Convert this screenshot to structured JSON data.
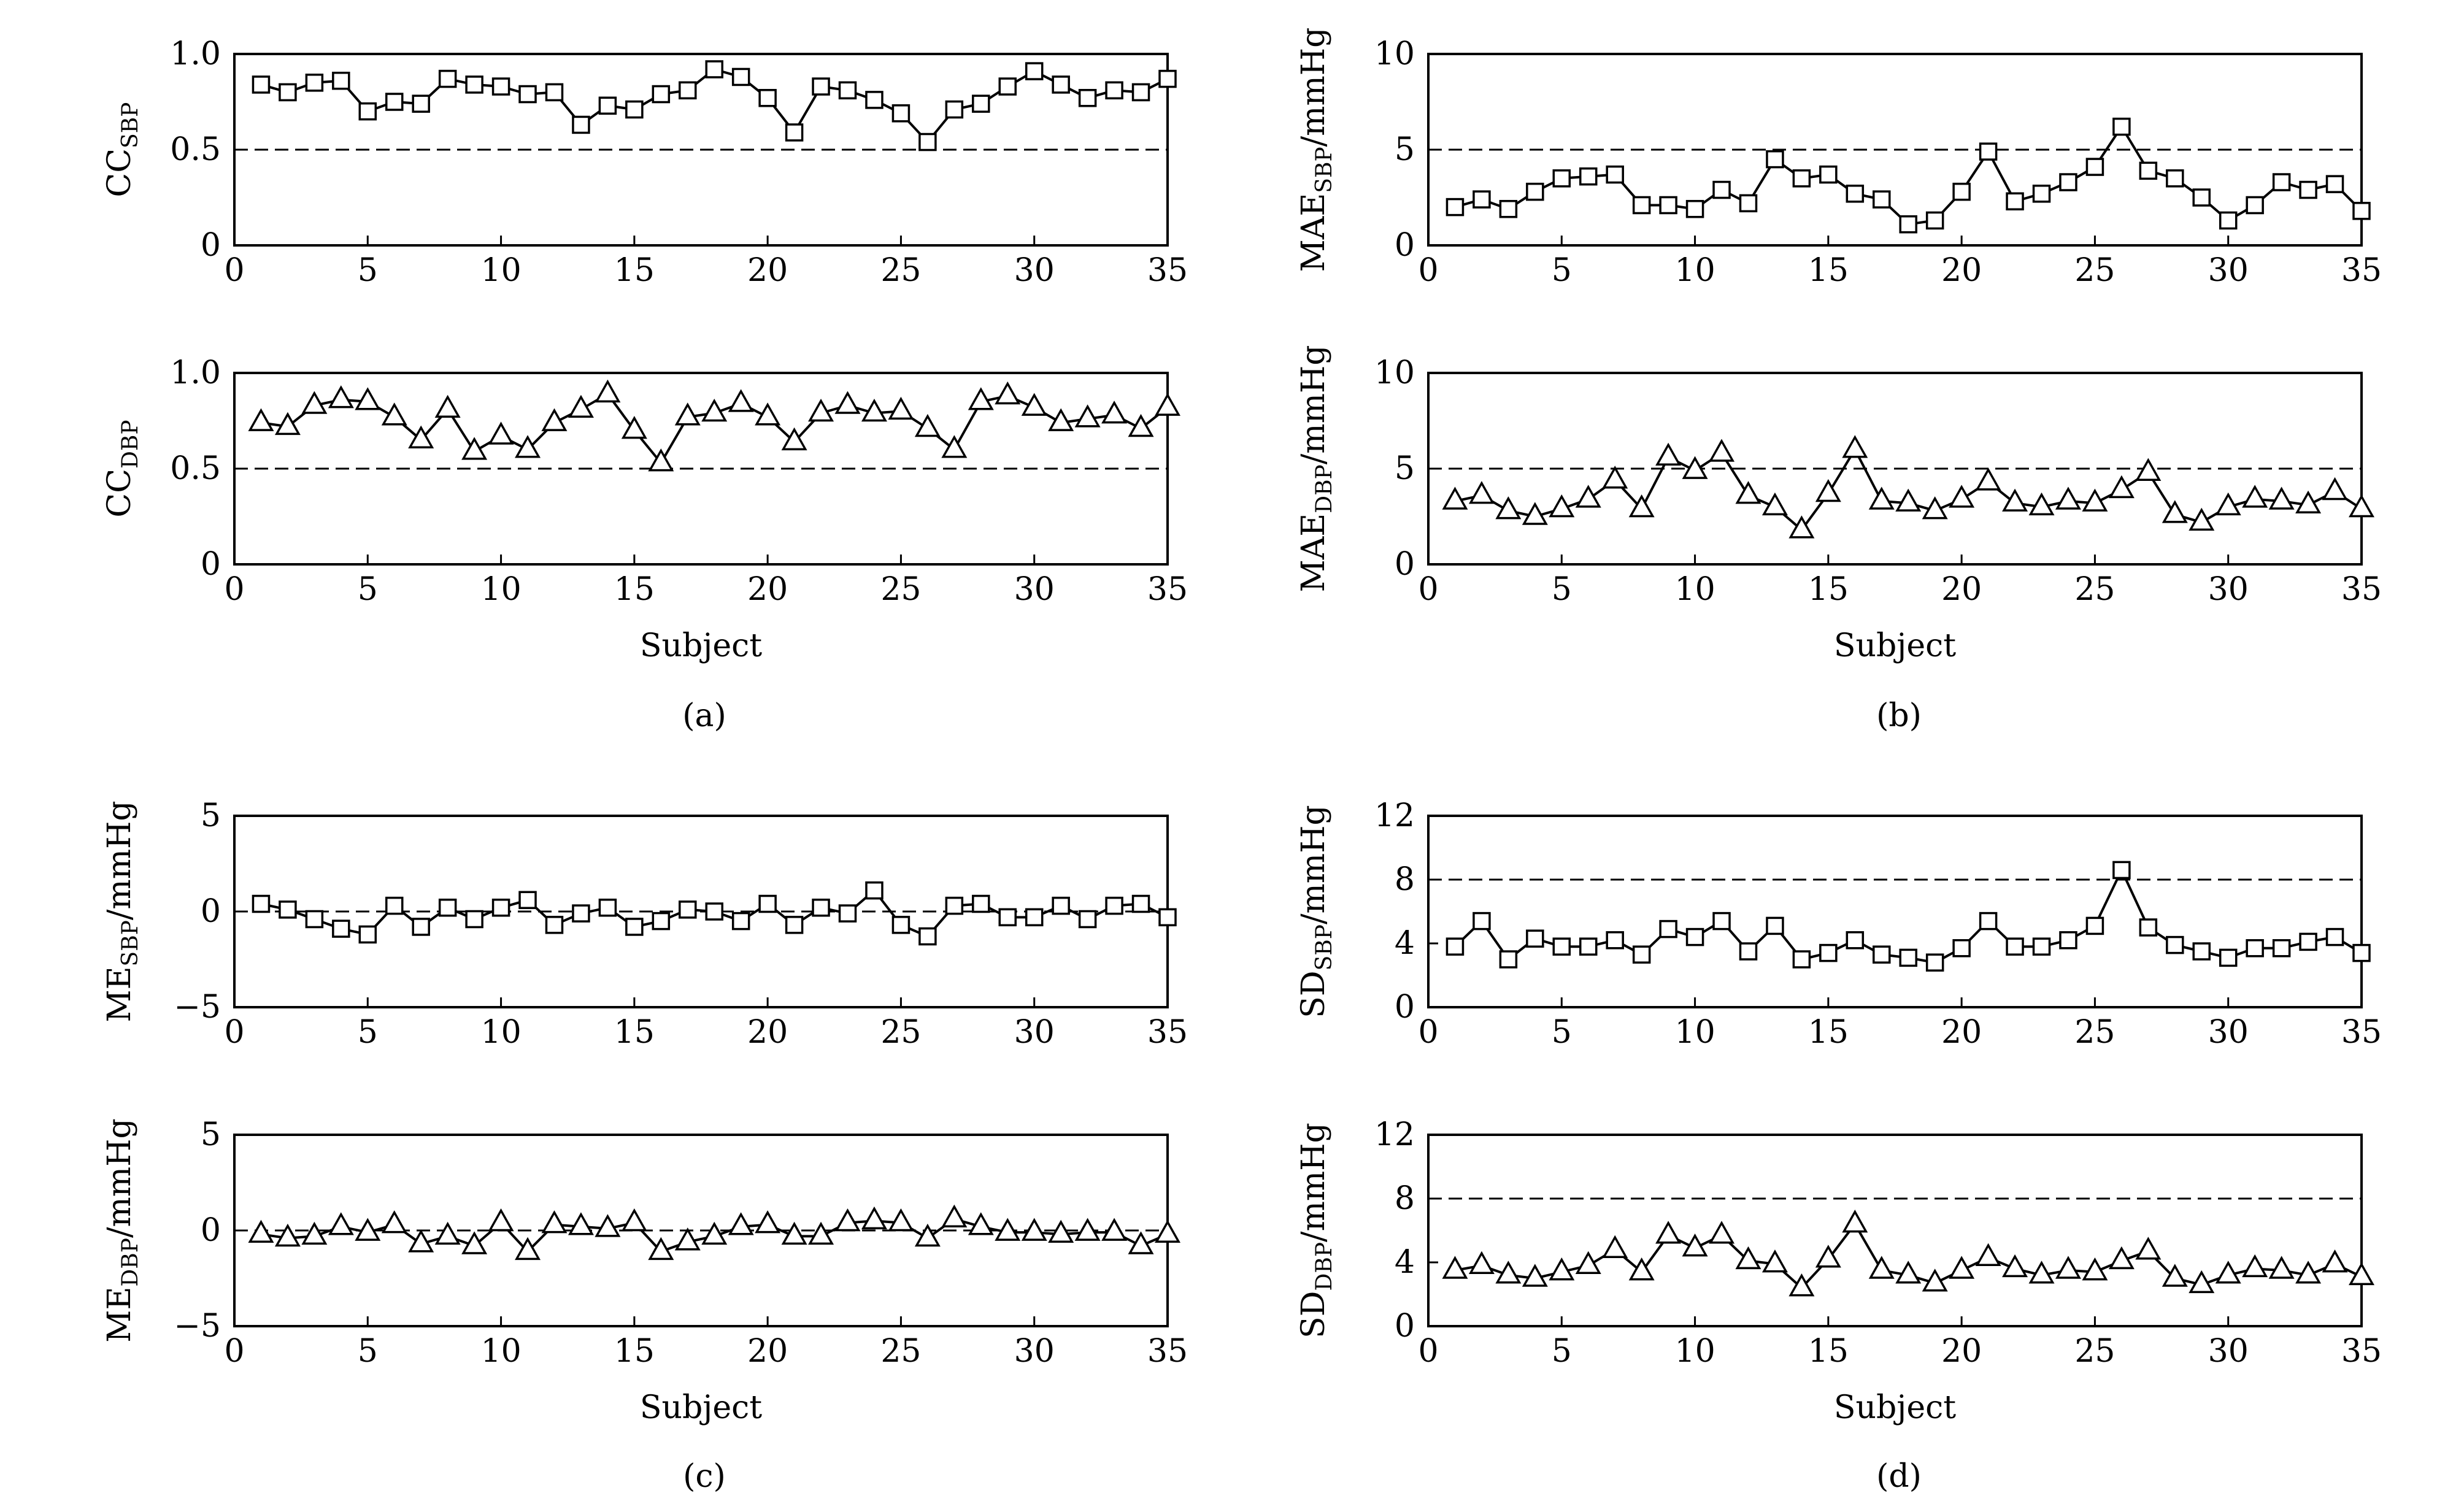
{
  "figure": {
    "panel_labels": [
      "(a)",
      "(b)",
      "(c)",
      "(d)"
    ]
  },
  "chart_data": [
    {
      "type": "line",
      "panel": "(a)",
      "ylabel": "CC",
      "ylabel_sub": "SBP",
      "xlabel": "",
      "xlim": [
        0,
        35
      ],
      "ylim": [
        0,
        1.0
      ],
      "xticks": [
        0,
        5,
        10,
        15,
        20,
        25,
        30,
        35
      ],
      "yticks": [
        0,
        0.5,
        1.0
      ],
      "ytick_labels": [
        "0",
        "0.5",
        "1.0"
      ],
      "threshold": 0.5,
      "marker": "square",
      "x": [
        1,
        2,
        3,
        4,
        5,
        6,
        7,
        8,
        9,
        10,
        11,
        12,
        13,
        14,
        15,
        16,
        17,
        18,
        19,
        20,
        21,
        22,
        23,
        24,
        25,
        26,
        27,
        28,
        29,
        30,
        31,
        32,
        33,
        34,
        35
      ],
      "values": [
        0.84,
        0.8,
        0.85,
        0.86,
        0.7,
        0.75,
        0.74,
        0.87,
        0.84,
        0.83,
        0.79,
        0.8,
        0.63,
        0.73,
        0.71,
        0.79,
        0.81,
        0.92,
        0.88,
        0.77,
        0.59,
        0.83,
        0.81,
        0.76,
        0.69,
        0.54,
        0.71,
        0.74,
        0.83,
        0.91,
        0.84,
        0.77,
        0.81,
        0.8,
        0.87
      ]
    },
    {
      "type": "line",
      "panel": "(a)",
      "ylabel": "CC",
      "ylabel_sub": "DBP",
      "xlabel": "Subject",
      "xlim": [
        0,
        35
      ],
      "ylim": [
        0,
        1.0
      ],
      "xticks": [
        0,
        5,
        10,
        15,
        20,
        25,
        30,
        35
      ],
      "yticks": [
        0,
        0.5,
        1.0
      ],
      "ytick_labels": [
        "0",
        "0.5",
        "1.0"
      ],
      "threshold": 0.5,
      "marker": "triangle",
      "x": [
        1,
        2,
        3,
        4,
        5,
        6,
        7,
        8,
        9,
        10,
        11,
        12,
        13,
        14,
        15,
        16,
        17,
        18,
        19,
        20,
        21,
        22,
        23,
        24,
        25,
        26,
        27,
        28,
        29,
        30,
        31,
        32,
        33,
        34,
        35
      ],
      "values": [
        0.74,
        0.72,
        0.83,
        0.86,
        0.85,
        0.77,
        0.65,
        0.81,
        0.59,
        0.67,
        0.6,
        0.74,
        0.81,
        0.89,
        0.7,
        0.53,
        0.77,
        0.79,
        0.84,
        0.77,
        0.64,
        0.79,
        0.83,
        0.79,
        0.8,
        0.71,
        0.6,
        0.85,
        0.88,
        0.82,
        0.74,
        0.76,
        0.78,
        0.71,
        0.82
      ]
    },
    {
      "type": "line",
      "panel": "(b)",
      "ylabel": "MAE",
      "ylabel_sub": "SBP",
      "ylabel_unit": "/mmHg",
      "xlabel": "",
      "xlim": [
        0,
        35
      ],
      "ylim": [
        0,
        10
      ],
      "xticks": [
        0,
        5,
        10,
        15,
        20,
        25,
        30,
        35
      ],
      "yticks": [
        0,
        5,
        10
      ],
      "ytick_labels": [
        "0",
        "5",
        "10"
      ],
      "threshold": 5,
      "marker": "square",
      "x": [
        1,
        2,
        3,
        4,
        5,
        6,
        7,
        8,
        9,
        10,
        11,
        12,
        13,
        14,
        15,
        16,
        17,
        18,
        19,
        20,
        21,
        22,
        23,
        24,
        25,
        26,
        27,
        28,
        29,
        30,
        31,
        32,
        33,
        34,
        35
      ],
      "values": [
        2.0,
        2.4,
        1.9,
        2.8,
        3.5,
        3.6,
        3.7,
        2.1,
        2.1,
        1.9,
        2.9,
        2.2,
        4.5,
        3.5,
        3.7,
        2.7,
        2.4,
        1.1,
        1.3,
        2.8,
        4.9,
        2.3,
        2.7,
        3.3,
        4.1,
        6.2,
        3.9,
        3.5,
        2.5,
        1.3,
        2.1,
        3.3,
        2.9,
        3.2,
        1.8
      ]
    },
    {
      "type": "line",
      "panel": "(b)",
      "ylabel": "MAE",
      "ylabel_sub": "DBP",
      "ylabel_unit": "/mmHg",
      "xlabel": "Subject",
      "xlim": [
        0,
        35
      ],
      "ylim": [
        0,
        10
      ],
      "xticks": [
        0,
        5,
        10,
        15,
        20,
        25,
        30,
        35
      ],
      "yticks": [
        0,
        5,
        10
      ],
      "ytick_labels": [
        "0",
        "5",
        "10"
      ],
      "threshold": 5,
      "marker": "triangle",
      "x": [
        1,
        2,
        3,
        4,
        5,
        6,
        7,
        8,
        9,
        10,
        11,
        12,
        13,
        14,
        15,
        16,
        17,
        18,
        19,
        20,
        21,
        22,
        23,
        24,
        25,
        26,
        27,
        28,
        29,
        30,
        31,
        32,
        33,
        34,
        35
      ],
      "values": [
        3.3,
        3.6,
        2.8,
        2.5,
        2.9,
        3.4,
        4.4,
        2.9,
        5.6,
        4.9,
        5.8,
        3.6,
        3.0,
        1.8,
        3.7,
        6.0,
        3.3,
        3.2,
        2.8,
        3.4,
        4.3,
        3.2,
        3.0,
        3.3,
        3.2,
        3.9,
        4.8,
        2.6,
        2.2,
        3.0,
        3.4,
        3.3,
        3.1,
        3.8,
        2.9
      ]
    },
    {
      "type": "line",
      "panel": "(c)",
      "ylabel": "ME",
      "ylabel_sub": "SBP",
      "ylabel_unit": "/mmHg",
      "xlabel": "",
      "xlim": [
        0,
        35
      ],
      "ylim": [
        -5,
        5
      ],
      "xticks": [
        0,
        5,
        10,
        15,
        20,
        25,
        30,
        35
      ],
      "yticks": [
        -5,
        0,
        5
      ],
      "ytick_labels": [
        "−5",
        "0",
        "5"
      ],
      "threshold": 0,
      "marker": "square",
      "x": [
        1,
        2,
        3,
        4,
        5,
        6,
        7,
        8,
        9,
        10,
        11,
        12,
        13,
        14,
        15,
        16,
        17,
        18,
        19,
        20,
        21,
        22,
        23,
        24,
        25,
        26,
        27,
        28,
        29,
        30,
        31,
        32,
        33,
        34,
        35
      ],
      "values": [
        0.4,
        0.1,
        -0.4,
        -0.9,
        -1.2,
        0.3,
        -0.8,
        0.2,
        -0.4,
        0.2,
        0.6,
        -0.7,
        -0.1,
        0.2,
        -0.8,
        -0.5,
        0.1,
        0.0,
        -0.5,
        0.4,
        -0.7,
        0.2,
        -0.1,
        1.1,
        -0.7,
        -1.3,
        0.3,
        0.4,
        -0.3,
        -0.3,
        0.3,
        -0.4,
        0.3,
        0.4,
        -0.3
      ]
    },
    {
      "type": "line",
      "panel": "(c)",
      "ylabel": "ME",
      "ylabel_sub": "DBP",
      "ylabel_unit": "/mmHg",
      "xlabel": "Subject",
      "xlim": [
        0,
        35
      ],
      "ylim": [
        -5,
        5
      ],
      "xticks": [
        0,
        5,
        10,
        15,
        20,
        25,
        30,
        35
      ],
      "yticks": [
        -5,
        0,
        5
      ],
      "ytick_labels": [
        "−5",
        "0",
        "5"
      ],
      "threshold": 0,
      "marker": "triangle",
      "x": [
        1,
        2,
        3,
        4,
        5,
        6,
        7,
        8,
        9,
        10,
        11,
        12,
        13,
        14,
        15,
        16,
        17,
        18,
        19,
        20,
        21,
        22,
        23,
        24,
        25,
        26,
        27,
        28,
        29,
        30,
        31,
        32,
        33,
        34,
        35
      ],
      "values": [
        -0.2,
        -0.4,
        -0.3,
        0.2,
        -0.1,
        0.3,
        -0.7,
        -0.3,
        -0.8,
        0.4,
        -1.1,
        0.3,
        0.2,
        0.1,
        0.4,
        -1.1,
        -0.6,
        -0.3,
        0.2,
        0.3,
        -0.3,
        -0.3,
        0.4,
        0.5,
        0.4,
        -0.4,
        0.6,
        0.2,
        -0.1,
        -0.1,
        -0.2,
        -0.1,
        -0.1,
        -0.8,
        -0.2
      ]
    },
    {
      "type": "line",
      "panel": "(d)",
      "ylabel": "SD",
      "ylabel_sub": "SBP",
      "ylabel_unit": "/mmHg",
      "xlabel": "",
      "xlim": [
        0,
        35
      ],
      "ylim": [
        0,
        12
      ],
      "xticks": [
        0,
        5,
        10,
        15,
        20,
        25,
        30,
        35
      ],
      "yticks": [
        0,
        4,
        8,
        12
      ],
      "ytick_labels": [
        "0",
        "4",
        "8",
        "12"
      ],
      "threshold": 8,
      "marker": "square",
      "x": [
        1,
        2,
        3,
        4,
        5,
        6,
        7,
        8,
        9,
        10,
        11,
        12,
        13,
        14,
        15,
        16,
        17,
        18,
        19,
        20,
        21,
        22,
        23,
        24,
        25,
        26,
        27,
        28,
        29,
        30,
        31,
        32,
        33,
        34,
        35
      ],
      "values": [
        3.8,
        5.4,
        3.0,
        4.3,
        3.8,
        3.8,
        4.2,
        3.3,
        4.9,
        4.4,
        5.4,
        3.5,
        5.1,
        3.0,
        3.4,
        4.2,
        3.3,
        3.1,
        2.8,
        3.7,
        5.4,
        3.8,
        3.8,
        4.2,
        5.1,
        8.6,
        5.0,
        3.9,
        3.5,
        3.1,
        3.7,
        3.7,
        4.1,
        4.4,
        3.4
      ]
    },
    {
      "type": "line",
      "panel": "(d)",
      "ylabel": "SD",
      "ylabel_sub": "DBP",
      "ylabel_unit": "/mmHg",
      "xlabel": "Subject",
      "xlim": [
        0,
        35
      ],
      "ylim": [
        0,
        12
      ],
      "xticks": [
        0,
        5,
        10,
        15,
        20,
        25,
        30,
        35
      ],
      "yticks": [
        0,
        4,
        8,
        12
      ],
      "ytick_labels": [
        "0",
        "4",
        "8",
        "12"
      ],
      "threshold": 8,
      "marker": "triangle",
      "x": [
        1,
        2,
        3,
        4,
        5,
        6,
        7,
        8,
        9,
        10,
        11,
        12,
        13,
        14,
        15,
        16,
        17,
        18,
        19,
        20,
        21,
        22,
        23,
        24,
        25,
        26,
        27,
        28,
        29,
        30,
        31,
        32,
        33,
        34,
        35
      ],
      "values": [
        3.5,
        3.8,
        3.2,
        3.0,
        3.4,
        3.8,
        4.8,
        3.4,
        5.7,
        4.9,
        5.7,
        4.1,
        3.9,
        2.4,
        4.2,
        6.4,
        3.5,
        3.2,
        2.7,
        3.5,
        4.3,
        3.6,
        3.2,
        3.5,
        3.4,
        4.1,
        4.7,
        3.0,
        2.6,
        3.2,
        3.6,
        3.5,
        3.2,
        3.9,
        3.1
      ]
    }
  ]
}
